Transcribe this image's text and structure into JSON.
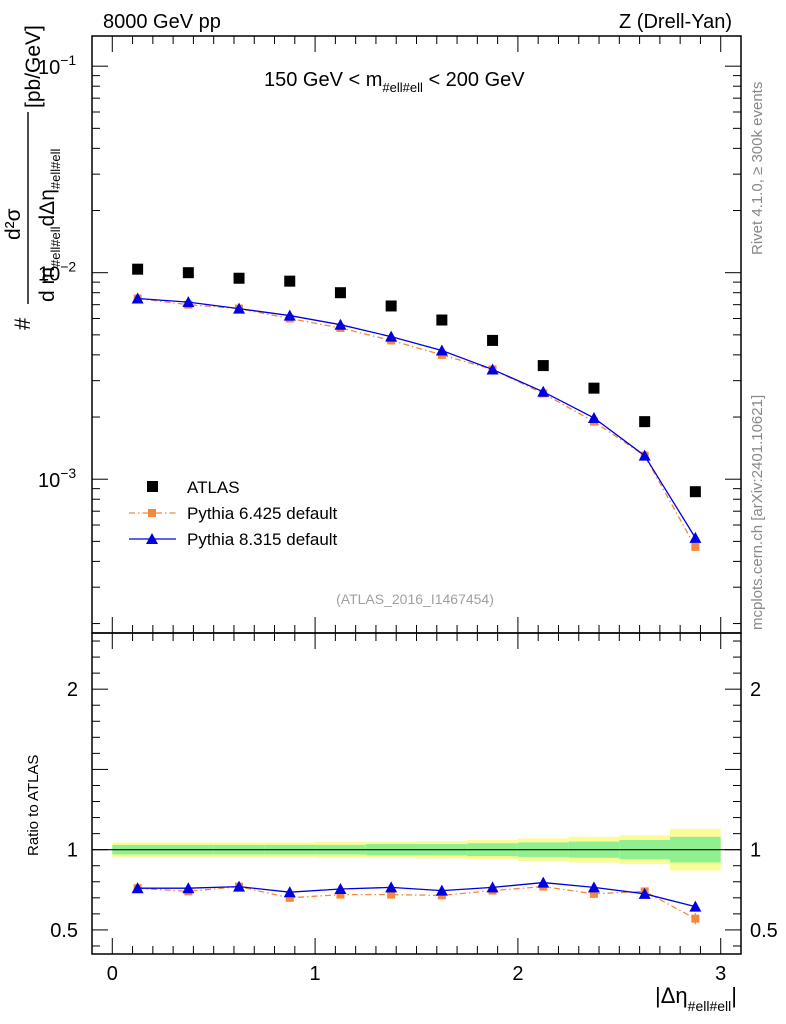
{
  "header": {
    "left": "8000 GeV pp",
    "right": "Z (Drell-Yan)"
  },
  "sidebar": {
    "rivet": "Rivet 4.1.0, ≥ 300k events",
    "mcplots": "mcplots.cern.ch [arXiv:2401.10621]"
  },
  "colors": {
    "atlas": "#000000",
    "pythia6": "#f5883a",
    "pythia8": "#0000e0",
    "band_inner": "#90f090",
    "band_outer": "#fbfb98"
  },
  "chart_data": [
    {
      "type": "scatter",
      "title": "150 GeV < m_{#ell#ell} < 200 GeV",
      "title_main_a": "150 GeV < m",
      "title_sub": "#ell#ell",
      "title_main_b": " < 200 GeV",
      "ylabel": "d²σ / d m_{#ell#ell} dΔη_{#ell#ell} [pb/GeV]",
      "ylabel_parts": {
        "hash": "#",
        "numerator": "d²σ",
        "den_a": "d m",
        "den_sub1": "#ell#ell",
        "den_b": "dΔη",
        "den_sub2": "#ell#ell",
        "unit": "[pb/GeV]"
      },
      "yscale": "log",
      "ylim": [
        0.00018,
        0.14
      ],
      "y_ticks": [
        {
          "value": 0.1,
          "mant": "10",
          "exp": "−1"
        },
        {
          "value": 0.01,
          "mant": "10",
          "exp": "−2"
        },
        {
          "value": 0.001,
          "mant": "10",
          "exp": "−3"
        }
      ],
      "xlim": [
        -0.1,
        3.1
      ],
      "watermark": "(ATLAS_2016_I1467454)",
      "legend_position": "lower-left",
      "series": [
        {
          "name": "ATLAS",
          "marker": "square",
          "x": [
            0.125,
            0.375,
            0.625,
            0.875,
            1.125,
            1.375,
            1.625,
            1.875,
            2.125,
            2.375,
            2.625,
            2.875
          ],
          "values": [
            0.0104,
            0.01,
            0.0094,
            0.0091,
            0.008,
            0.0069,
            0.0059,
            0.0047,
            0.00355,
            0.00276,
            0.0019,
            0.00087
          ]
        },
        {
          "name": "Pythia 6.425 default",
          "marker": "square-small",
          "line": "dashdot",
          "x": [
            0.125,
            0.375,
            0.625,
            0.875,
            1.125,
            1.375,
            1.625,
            1.875,
            2.125,
            2.375,
            2.625,
            2.875
          ],
          "values": [
            0.0075,
            0.007,
            0.0067,
            0.006,
            0.0054,
            0.0047,
            0.004,
            0.0034,
            0.0026,
            0.0019,
            0.0013,
            0.00047
          ]
        },
        {
          "name": "Pythia 8.315 default",
          "marker": "triangle",
          "line": "solid",
          "x": [
            0.125,
            0.375,
            0.625,
            0.875,
            1.125,
            1.375,
            1.625,
            1.875,
            2.125,
            2.375,
            2.625,
            2.875
          ],
          "values": [
            0.0075,
            0.0072,
            0.0067,
            0.0062,
            0.0056,
            0.0049,
            0.0042,
            0.0034,
            0.00265,
            0.00198,
            0.0013,
            0.00052
          ]
        }
      ]
    },
    {
      "type": "scatter",
      "ylabel": "Ratio to ATLAS",
      "xlabel": "|Δη_{#ell#ell}|",
      "xlabel_main": "|Δη",
      "xlabel_sub": "#ell#ell",
      "xlabel_close": "|",
      "ylim": [
        0.35,
        2.35
      ],
      "y_ticks": [
        {
          "value": 0.5,
          "label": "0.5"
        },
        {
          "value": 1,
          "label": "1"
        },
        {
          "value": 2,
          "label": "2"
        }
      ],
      "xlim": [
        -0.1,
        3.1
      ],
      "x_ticks": [
        {
          "value": 0,
          "label": "0"
        },
        {
          "value": 1,
          "label": "1"
        },
        {
          "value": 2,
          "label": "2"
        },
        {
          "value": 3,
          "label": "3"
        }
      ],
      "bins": [
        [
          0,
          0.25
        ],
        [
          0.25,
          0.5
        ],
        [
          0.5,
          0.75
        ],
        [
          0.75,
          1.0
        ],
        [
          1.0,
          1.25
        ],
        [
          1.25,
          1.5
        ],
        [
          1.5,
          1.75
        ],
        [
          1.75,
          2.0
        ],
        [
          2.0,
          2.25
        ],
        [
          2.25,
          2.5
        ],
        [
          2.5,
          2.75
        ],
        [
          2.75,
          3.0
        ]
      ],
      "band_inner": [
        0.03,
        0.03,
        0.03,
        0.03,
        0.03,
        0.035,
        0.035,
        0.04,
        0.045,
        0.05,
        0.06,
        0.08
      ],
      "band_outer": [
        0.045,
        0.045,
        0.045,
        0.045,
        0.05,
        0.05,
        0.055,
        0.06,
        0.07,
        0.08,
        0.09,
        0.13
      ],
      "series": [
        {
          "name": "Pythia 6.425 default",
          "x": [
            0.125,
            0.375,
            0.625,
            0.875,
            1.125,
            1.375,
            1.625,
            1.875,
            2.125,
            2.375,
            2.625,
            2.875
          ],
          "values": [
            0.76,
            0.74,
            0.77,
            0.7,
            0.72,
            0.72,
            0.715,
            0.745,
            0.77,
            0.725,
            0.74,
            0.57
          ],
          "errors": [
            0.01,
            0.01,
            0.01,
            0.01,
            0.01,
            0.01,
            0.01,
            0.01,
            0.015,
            0.015,
            0.02,
            0.035
          ]
        },
        {
          "name": "Pythia 8.315 default",
          "x": [
            0.125,
            0.375,
            0.625,
            0.875,
            1.125,
            1.375,
            1.625,
            1.875,
            2.125,
            2.375,
            2.625,
            2.875
          ],
          "values": [
            0.76,
            0.76,
            0.77,
            0.735,
            0.755,
            0.765,
            0.745,
            0.765,
            0.795,
            0.765,
            0.725,
            0.645
          ]
        }
      ]
    }
  ]
}
